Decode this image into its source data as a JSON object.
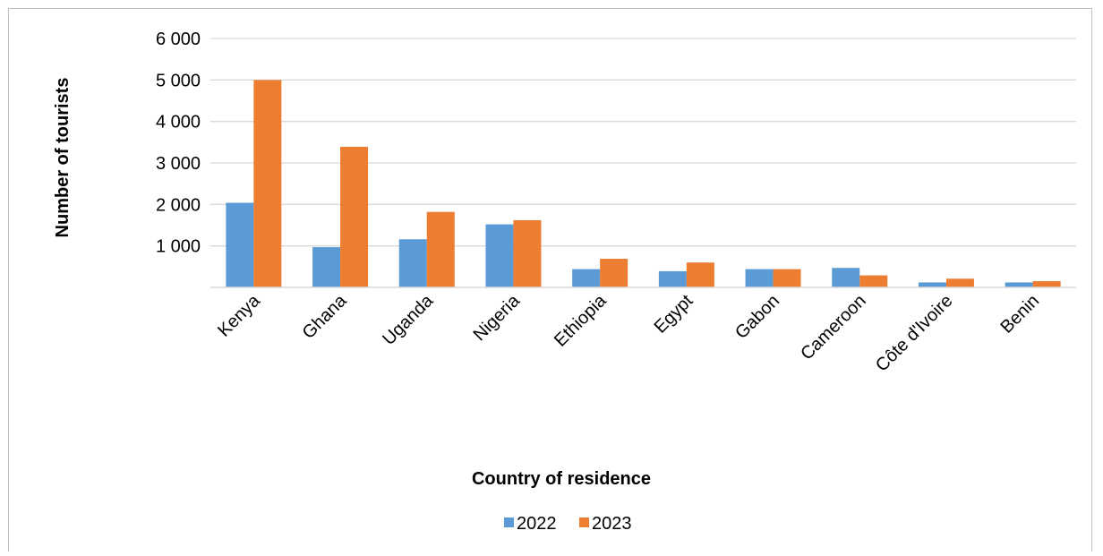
{
  "chart_data": {
    "type": "bar",
    "title": "",
    "xlabel": "Country of residence",
    "ylabel": "Number of tourists",
    "categories": [
      "Kenya",
      "Ghana",
      "Uganda",
      "Nigeria",
      "Ethiopia",
      "Egypt",
      "Gabon",
      "Cameroon",
      "Côte d'Ivoire",
      "Benin"
    ],
    "series": [
      {
        "name": "2022",
        "color": "#5b9bd5",
        "values": [
          2040,
          970,
          1160,
          1520,
          440,
          390,
          440,
          470,
          120,
          120
        ]
      },
      {
        "name": "2023",
        "color": "#ed7d31",
        "values": [
          5000,
          3390,
          1820,
          1620,
          690,
          600,
          440,
          290,
          210,
          150
        ]
      }
    ],
    "ylim": [
      0,
      6000
    ],
    "yticks": [
      1000,
      2000,
      3000,
      4000,
      5000,
      6000
    ],
    "ytick_labels": [
      "1 000",
      "2 000",
      "3 000",
      "4 000",
      "5 000",
      "6 000"
    ],
    "grid": true,
    "legend_position": "bottom"
  }
}
